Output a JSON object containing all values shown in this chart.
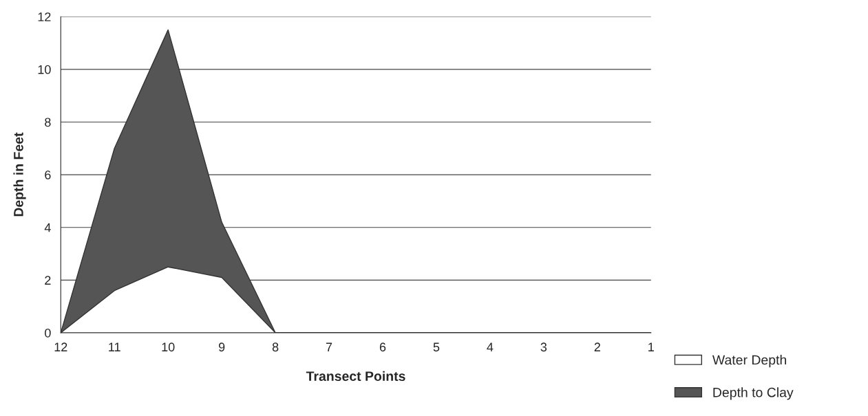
{
  "chart_data": {
    "type": "area",
    "xlabel": "Transect Points",
    "ylabel": "Depth in Feet",
    "categories": [
      "12",
      "11",
      "10",
      "9",
      "8",
      "7",
      "6",
      "5",
      "4",
      "3",
      "2",
      "1"
    ],
    "series": [
      {
        "name": "Depth to Clay",
        "color": "#555555",
        "values": [
          0,
          7,
          11.5,
          4.2,
          0,
          0,
          0,
          0,
          0,
          0,
          0,
          0
        ]
      },
      {
        "name": "Water Depth",
        "color": "#ffffff",
        "values": [
          0,
          1.6,
          2.5,
          2.1,
          0,
          0,
          0,
          0,
          0,
          0,
          0,
          0
        ]
      }
    ],
    "ylim": [
      0,
      12
    ],
    "yticks": [
      0,
      2,
      4,
      6,
      8,
      10,
      12
    ],
    "grid": "y",
    "legend": "bottom right"
  }
}
